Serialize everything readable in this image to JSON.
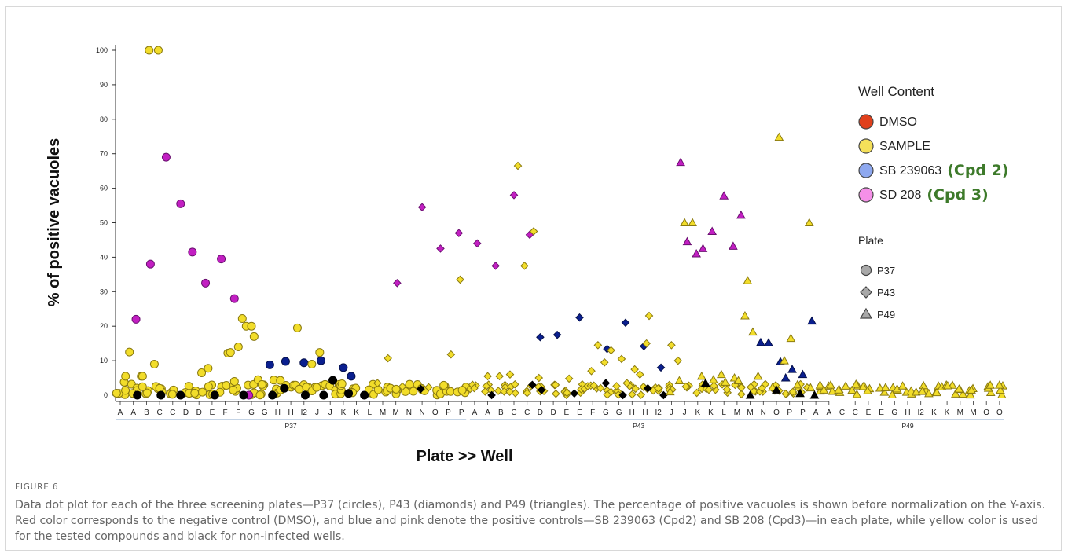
{
  "chart_data": {
    "type": "scatter",
    "xlabel": "Plate >> Well",
    "ylabel": "% of positive vacuoles",
    "ylim": [
      0,
      100
    ],
    "yticks": [
      0,
      10,
      20,
      30,
      40,
      50,
      60,
      70,
      80,
      90,
      100
    ],
    "grid": false,
    "plates": [
      {
        "name": "P37",
        "wells": [
          "A",
          "A",
          "B",
          "C",
          "C",
          "D",
          "D",
          "E",
          "F",
          "F",
          "G",
          "G",
          "H",
          "H",
          "I2",
          "J",
          "J",
          "K",
          "K",
          "L",
          "M",
          "M",
          "N",
          "N",
          "O",
          "P",
          "P"
        ]
      },
      {
        "name": "P43",
        "wells": [
          "A",
          "A",
          "B",
          "C",
          "C",
          "D",
          "D",
          "E",
          "E",
          "F",
          "G",
          "G",
          "H",
          "H",
          "I2",
          "J",
          "J",
          "K",
          "K",
          "L",
          "M",
          "M",
          "N",
          "O",
          "P",
          "P"
        ]
      },
      {
        "name": "P49",
        "wells": [
          "A",
          "A",
          "C",
          "C",
          "E",
          "E",
          "G",
          "H",
          "I2",
          "K",
          "K",
          "M",
          "M",
          "O",
          "O"
        ]
      }
    ],
    "legend": {
      "title": "Well Content",
      "position": "right",
      "entries": [
        {
          "name": "DMSO",
          "color": "#e0401c"
        },
        {
          "name": "SAMPLE",
          "color": "#f5e05a"
        },
        {
          "name": "SB 239063",
          "note": "(Cpd 2)",
          "color": "#8ea8ef"
        },
        {
          "name": "SD 208",
          "note": "(Cpd 3)",
          "color": "#f590e8"
        }
      ],
      "plate_title": "Plate",
      "plate_entries": [
        {
          "name": "P37",
          "shape": "circle"
        },
        {
          "name": "P43",
          "shape": "diamond"
        },
        {
          "name": "P49",
          "shape": "triangle"
        }
      ]
    },
    "marker_colors": {
      "sample": "#f2dd2a",
      "sample_stroke": "#8a7a10",
      "sb": "#0a1f8f",
      "sd": "#c21fc2",
      "sd_stroke": "#6a1070",
      "dmso": "#e0401c",
      "noninfected": "#000000"
    },
    "series": [
      {
        "name": "SD 208",
        "plate": "P37",
        "marker": "circle",
        "x": [
          1.2,
          2.3,
          3.5,
          4.6,
          5.5,
          6.5,
          7.7,
          8.7,
          9.8
        ],
        "y": [
          22,
          38,
          69,
          55.5,
          41.5,
          32.5,
          39.5,
          28,
          0
        ]
      },
      {
        "name": "SB 239063",
        "plate": "P37",
        "marker": "circle",
        "x": [
          11.4,
          12.6,
          14.0,
          15.3,
          17.0,
          17.6
        ],
        "y": [
          8.8,
          9.8,
          9.4,
          10,
          8,
          5.5
        ]
      },
      {
        "name": "SAMPLE",
        "plate": "P37",
        "marker": "circle",
        "x": [
          0.3,
          0.4,
          0.7,
          1.6,
          1.7,
          2.2,
          2.6,
          2.9,
          3.0,
          6.2,
          6.7,
          8.2,
          8.4,
          8.7,
          9.0,
          9.3,
          9.6,
          10.0,
          10.2,
          10.5,
          10.8,
          11.7,
          12.2,
          13.5,
          14.6,
          15.2,
          16.9
        ],
        "y": [
          3.8,
          5.5,
          12.5,
          5.5,
          5.5,
          100,
          9,
          100,
          2,
          6.5,
          7.8,
          12.2,
          12.4,
          4,
          14,
          22.2,
          20,
          20,
          17,
          4.5,
          3.1,
          4.4,
          4.3,
          19.5,
          9,
          12.4,
          3.3
        ]
      },
      {
        "name": "non-infected",
        "plate": "P37",
        "marker": "circle",
        "x": [
          1.3,
          3.1,
          4.6,
          7.2,
          9.4,
          11.6,
          12.5,
          14.1,
          15.5,
          16.2,
          17.4,
          18.6
        ],
        "y": [
          0,
          0,
          0,
          0,
          0,
          0,
          2,
          0,
          0,
          4.3,
          0.5,
          0
        ]
      },
      {
        "name": "SD 208",
        "plate": "P43",
        "marker": "diamond",
        "x": [
          21.1,
          23.0,
          24.4,
          25.8,
          27.2,
          28.6,
          30.0,
          31.2
        ],
        "y": [
          32.5,
          54.5,
          42.5,
          47,
          44,
          37.5,
          58,
          46.5
        ]
      },
      {
        "name": "SB 239063",
        "plate": "P43",
        "marker": "diamond",
        "x": [
          32.0,
          33.3,
          35.0,
          37.1,
          38.5,
          39.9,
          41.2
        ],
        "y": [
          16.8,
          17.5,
          22.5,
          13.4,
          21,
          14.2,
          8
        ]
      },
      {
        "name": "SAMPLE",
        "plate": "P43",
        "marker": "diamond",
        "x": [
          19.6,
          20.4,
          21.5,
          23.5,
          25.2,
          25.9,
          28.0,
          28.9,
          29.7,
          30.3,
          30.8,
          31.5,
          31.9,
          34.2,
          35.9,
          36.4,
          36.9,
          37.4,
          38.2,
          38.6,
          39.2,
          39.6,
          40.1,
          40.3,
          41.0,
          42.0,
          42.5
        ],
        "y": [
          3.5,
          10.7,
          2.5,
          2.3,
          11.8,
          33.5,
          5.5,
          5.5,
          6,
          66.5,
          37.5,
          47.5,
          5,
          4.8,
          7,
          14.5,
          9.5,
          13,
          10.5,
          3.5,
          7.5,
          6,
          15,
          23,
          2,
          14.5,
          10
        ]
      },
      {
        "name": "non-infected",
        "plate": "P43",
        "marker": "diamond",
        "x": [
          22.9,
          28.3,
          31.4,
          32.1,
          34.6,
          37.0,
          38.3,
          40.2,
          41.4
        ],
        "y": [
          1.8,
          0,
          3,
          1.5,
          0.5,
          3.5,
          0,
          2,
          0
        ]
      },
      {
        "name": "SD 208",
        "plate": "P49",
        "marker": "triangle",
        "x": [
          42.7,
          43.2,
          43.9,
          44.4,
          45.1,
          46.0,
          46.7,
          47.3
        ],
        "y": [
          67.5,
          44.5,
          41,
          42.5,
          47.5,
          57.8,
          43.2,
          52.2
        ]
      },
      {
        "name": "SB 239063",
        "plate": "P49",
        "marker": "triangle",
        "x": [
          48.8,
          49.4,
          50.3,
          50.7,
          51.2,
          52.0,
          52.7
        ],
        "y": [
          15.3,
          15.2,
          9.7,
          5,
          7.5,
          6,
          21.5
        ]
      },
      {
        "name": "SAMPLE",
        "plate": "P49",
        "marker": "triangle",
        "x": [
          42.6,
          43.0,
          43.6,
          44.3,
          45.2,
          45.8,
          46.1,
          46.8,
          47.1,
          47.6,
          47.8,
          48.2,
          48.6,
          49.7,
          50.2,
          50.6,
          51.1,
          51.6,
          52.5,
          41.9
        ],
        "y": [
          4.2,
          50,
          50,
          5.5,
          4.5,
          6,
          3.8,
          5,
          4.2,
          23,
          33.2,
          18.3,
          5.5,
          2.3,
          74.8,
          10,
          16.5,
          3,
          50,
          1
        ]
      },
      {
        "name": "non-infected",
        "plate": "P49",
        "marker": "triangle",
        "x": [
          44.6,
          48.0,
          50.0,
          51.8,
          52.9
        ],
        "y": [
          3.5,
          0,
          1.5,
          0.5,
          0
        ]
      }
    ]
  },
  "caption": {
    "label": "FIGURE 6",
    "text": "Data dot plot for each of the three screening plates—P37 (circles), P43 (diamonds) and P49 (triangles). The percentage of positive vacuoles is shown before normalization on the Y-axis. Red color corresponds to the negative control (DMSO), and blue and pink denote the positive controls—SB 239063 (Cpd2) and SB 208 (Cpd3)—in each plate, while yellow color is used for the tested compounds and black for non-infected wells."
  }
}
